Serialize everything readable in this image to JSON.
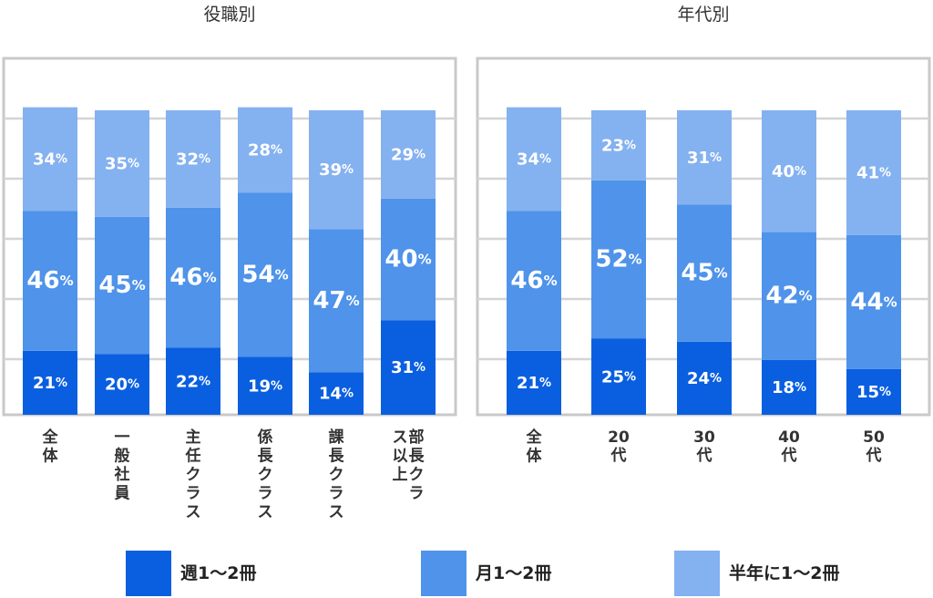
{
  "colors": {
    "weekly": "#0a5fe0",
    "monthly": "#4f93ea",
    "half_year": "#84b1f0",
    "frame": "#c9c9c9",
    "grid": "#d4d4d4",
    "label_text": "#ffffff",
    "category_text": "#333333"
  },
  "legend": [
    {
      "label": "週1〜2冊",
      "series": "weekly"
    },
    {
      "label": "月1〜2冊",
      "series": "monthly"
    },
    {
      "label": "半年に1〜2冊",
      "series": "half_year"
    }
  ],
  "chart_data": [
    {
      "type": "bar",
      "stacked": true,
      "title": "役職別",
      "categories": [
        "全体",
        "一般社員",
        "主任クラス",
        "係長クラス",
        "課長クラス",
        "部長クラス以上"
      ],
      "series": [
        {
          "key": "weekly",
          "name": "週1〜2冊",
          "values": [
            21,
            20,
            22,
            19,
            14,
            31
          ]
        },
        {
          "key": "monthly",
          "name": "月1〜2冊",
          "values": [
            46,
            45,
            46,
            54,
            47,
            40
          ]
        },
        {
          "key": "half_year",
          "name": "半年に1〜2冊",
          "values": [
            34,
            35,
            32,
            28,
            39,
            29
          ]
        }
      ],
      "value_suffix": "%",
      "grid": true,
      "legend_position": "bottom"
    },
    {
      "type": "bar",
      "stacked": true,
      "title": "年代別",
      "categories": [
        "全体",
        "20代",
        "30代",
        "40代",
        "50代"
      ],
      "series": [
        {
          "key": "weekly",
          "name": "週1〜2冊",
          "values": [
            21,
            25,
            24,
            18,
            15
          ]
        },
        {
          "key": "monthly",
          "name": "月1〜2冊",
          "values": [
            46,
            52,
            45,
            42,
            44
          ]
        },
        {
          "key": "half_year",
          "name": "半年に1〜2冊",
          "values": [
            34,
            23,
            31,
            40,
            41
          ]
        }
      ],
      "value_suffix": "%",
      "grid": true,
      "legend_position": "bottom"
    }
  ]
}
